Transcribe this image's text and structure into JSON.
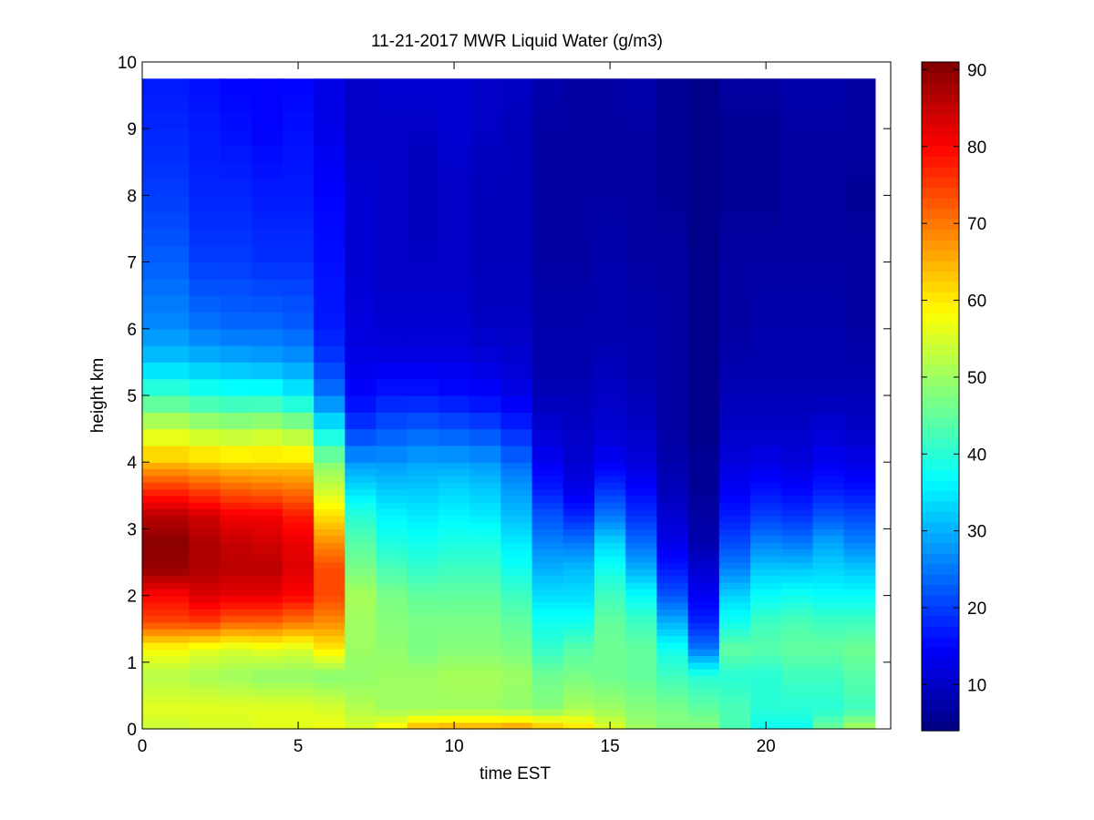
{
  "chart_data": {
    "type": "heatmap",
    "title": "11-21-2017 MWR Liquid Water (g/m3)",
    "xlabel": "time EST",
    "ylabel": "height km",
    "xlim": [
      0,
      24
    ],
    "ylim": [
      0,
      10
    ],
    "x_ticks": [
      0,
      5,
      10,
      15,
      20
    ],
    "y_ticks": [
      0,
      1,
      2,
      3,
      4,
      5,
      6,
      7,
      8,
      9,
      10
    ],
    "colorbar": {
      "range": [
        4,
        91
      ],
      "ticks": [
        10,
        20,
        30,
        40,
        50,
        60,
        70,
        80,
        90
      ],
      "colormap": "jet"
    },
    "time_edges": [
      0,
      1.5,
      2.5,
      3.5,
      4.5,
      5.5,
      6.5,
      7.5,
      8.5,
      9.5,
      10.5,
      11.5,
      12.5,
      13.5,
      14.5,
      15.5,
      16.5,
      17.5,
      18.5,
      19.5,
      20.5,
      21.5,
      22.5,
      23.5
    ],
    "height_edges": [
      0,
      0.1,
      0.2,
      0.3,
      0.4,
      0.5,
      0.6,
      0.7,
      0.8,
      0.9,
      1.0,
      1.1,
      1.2,
      1.3,
      1.4,
      1.5,
      1.6,
      1.7,
      1.8,
      1.9,
      2.0,
      2.1,
      2.2,
      2.3,
      2.4,
      2.5,
      2.6,
      2.7,
      2.8,
      2.9,
      3.0,
      3.1,
      3.2,
      3.3,
      3.4,
      3.5,
      3.6,
      3.7,
      3.8,
      3.9,
      4.0,
      4.25,
      4.5,
      4.75,
      5.0,
      5.25,
      5.5,
      5.75,
      6.0,
      6.25,
      6.5,
      6.75,
      7.0,
      7.25,
      7.5,
      7.75,
      8.0,
      8.25,
      8.5,
      8.75,
      9.0,
      9.25,
      9.5,
      9.75
    ],
    "profile_heights": [
      0.05,
      0.3,
      0.8,
      1.2,
      1.6,
      2.0,
      2.4,
      2.8,
      3.2,
      3.6,
      4.0,
      4.5,
      5.0,
      5.5,
      6.0,
      7.0,
      8.0,
      9.0,
      9.7
    ],
    "profiles": [
      [
        54,
        56,
        52,
        58,
        74,
        80,
        89,
        90,
        86,
        76,
        64,
        54,
        42,
        32,
        27,
        23,
        20,
        18,
        17
      ],
      [
        55,
        56,
        51,
        56,
        75,
        83,
        87,
        87,
        84,
        74,
        63,
        52,
        40,
        31,
        25,
        20,
        18,
        17,
        16
      ],
      [
        55,
        56,
        50,
        55,
        72,
        82,
        86,
        85,
        81,
        72,
        62,
        51,
        39,
        30,
        24,
        20,
        18,
        16,
        15
      ],
      [
        56,
        56,
        49,
        56,
        72,
        82,
        86,
        84,
        81,
        71,
        62,
        52,
        39,
        29,
        24,
        19,
        17,
        15,
        15
      ],
      [
        56,
        56,
        49,
        55,
        70,
        80,
        83,
        82,
        78,
        70,
        62,
        50,
        36,
        28,
        23,
        19,
        17,
        16,
        15
      ],
      [
        57,
        55,
        48,
        60,
        68,
        74,
        74,
        68,
        61,
        54,
        48,
        36,
        25,
        20,
        17,
        16,
        15,
        13,
        13
      ],
      [
        55,
        52,
        49,
        50,
        50,
        51,
        47,
        44,
        40,
        34,
        28,
        20,
        15,
        13,
        12,
        11,
        11,
        10,
        10
      ],
      [
        58,
        50,
        50,
        49,
        48,
        47,
        43,
        39,
        36,
        32,
        28,
        22,
        17,
        13,
        11,
        10,
        10,
        10,
        11
      ],
      [
        63,
        50,
        50,
        47,
        47,
        45,
        41,
        38,
        35,
        32,
        29,
        23,
        17,
        13,
        11,
        10,
        9,
        10,
        11
      ],
      [
        64,
        50,
        51,
        48,
        47,
        45,
        42,
        39,
        36,
        33,
        29,
        22,
        16,
        13,
        11,
        10,
        10,
        11,
        11
      ],
      [
        64,
        50,
        51,
        48,
        47,
        45,
        42,
        39,
        35,
        32,
        28,
        21,
        15,
        12,
        10,
        9,
        9,
        10,
        10
      ],
      [
        65,
        49,
        50,
        47,
        45,
        42,
        38,
        35,
        31,
        28,
        24,
        18,
        13,
        11,
        10,
        9,
        9,
        9,
        10
      ],
      [
        62,
        48,
        46,
        41,
        38,
        34,
        30,
        26,
        22,
        17,
        14,
        11,
        9,
        8,
        8,
        7,
        7,
        7,
        8
      ],
      [
        60,
        51,
        47,
        44,
        38,
        34,
        31,
        25,
        18,
        13,
        11,
        10,
        9,
        8,
        8,
        7,
        7,
        7,
        7
      ],
      [
        55,
        50,
        46,
        46,
        45,
        42,
        38,
        33,
        25,
        19,
        14,
        11,
        10,
        9,
        8,
        8,
        7,
        7,
        7
      ],
      [
        50,
        48,
        45,
        45,
        42,
        37,
        30,
        24,
        19,
        15,
        12,
        10,
        9,
        8,
        8,
        7,
        7,
        7,
        8
      ],
      [
        48,
        47,
        42,
        38,
        30,
        22,
        17,
        13,
        11,
        9,
        8,
        7,
        7,
        7,
        7,
        7,
        6,
        6,
        6
      ],
      [
        48,
        45,
        40,
        25,
        18,
        14,
        11,
        8,
        7,
        6,
        6,
        5,
        5,
        5,
        5,
        5,
        5,
        5,
        5
      ],
      [
        43,
        43,
        40,
        45,
        38,
        33,
        26,
        21,
        17,
        14,
        12,
        10,
        9,
        8,
        7,
        7,
        6,
        6,
        7
      ],
      [
        38,
        40,
        40,
        44,
        42,
        37,
        32,
        26,
        20,
        16,
        13,
        10,
        9,
        8,
        8,
        7,
        6,
        6,
        7
      ],
      [
        38,
        40,
        42,
        45,
        43,
        38,
        32,
        25,
        19,
        15,
        12,
        10,
        9,
        8,
        8,
        7,
        7,
        7,
        8
      ],
      [
        45,
        40,
        42,
        45,
        42,
        37,
        33,
        29,
        22,
        17,
        14,
        11,
        9,
        8,
        8,
        7,
        7,
        7,
        8
      ],
      [
        50,
        42,
        44,
        46,
        42,
        37,
        32,
        26,
        21,
        16,
        13,
        10,
        9,
        8,
        7,
        7,
        6,
        7,
        7
      ]
    ]
  }
}
